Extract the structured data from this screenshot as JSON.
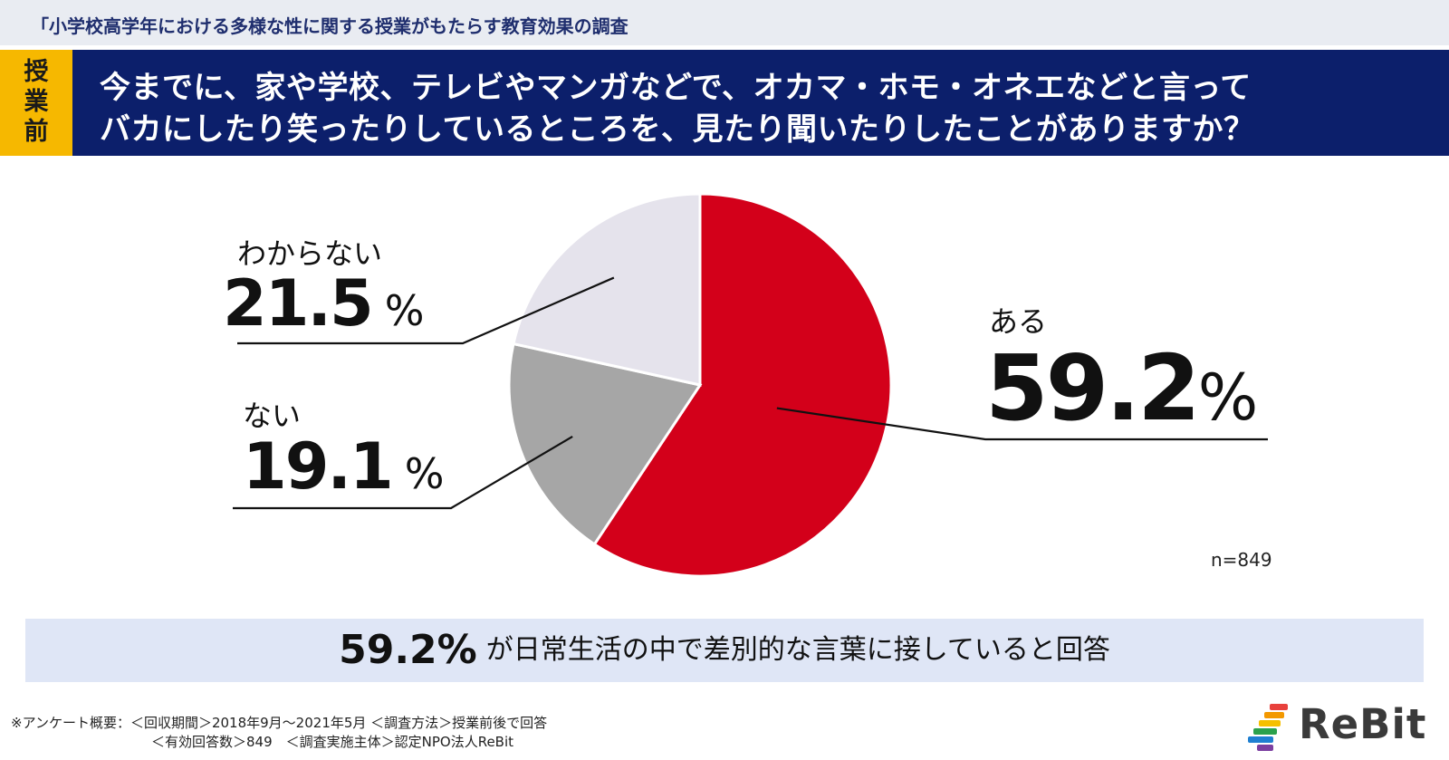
{
  "header": {
    "survey_title": "「小学校高学年における多様な性に関する授業がもたらす教育効果の調査",
    "badge": "授業前",
    "question_line1": "今までに、家や学校、テレビやマンガなどで、オカマ・ホモ・オネエなどと言って",
    "question_line2": "バカにしたり笑ったりしているところを、見たり聞いたりしたことがありますか？"
  },
  "chart_data": {
    "type": "pie",
    "categories": [
      "ある",
      "ない",
      "わからない"
    ],
    "values": [
      59.2,
      19.1,
      21.5
    ],
    "value_labels": [
      "59.2",
      "19.1",
      "21.5"
    ],
    "unit": "%",
    "colors": [
      "#d3001a",
      "#a6a6a6",
      "#e5e3ec"
    ],
    "start": "12 o'clock, clockwise",
    "n_label": "n=849"
  },
  "callout": {
    "number": "59.2%",
    "text": "が日常生活の中で差別的な言葉に接していると回答"
  },
  "footer": {
    "line1": "※アンケート概要：＜回収期間＞2018年9月〜2021年5月 ＜調査方法＞授業前後で回答",
    "line2": "＜有効回答数＞849　＜調査実施主体＞認定NPO法人ReBit"
  },
  "logo": {
    "text": "ReBit",
    "bar_colors": [
      "#e8413c",
      "#f39800",
      "#f6c000",
      "#2aa14c",
      "#1f7fd1",
      "#7b3fa0"
    ]
  }
}
